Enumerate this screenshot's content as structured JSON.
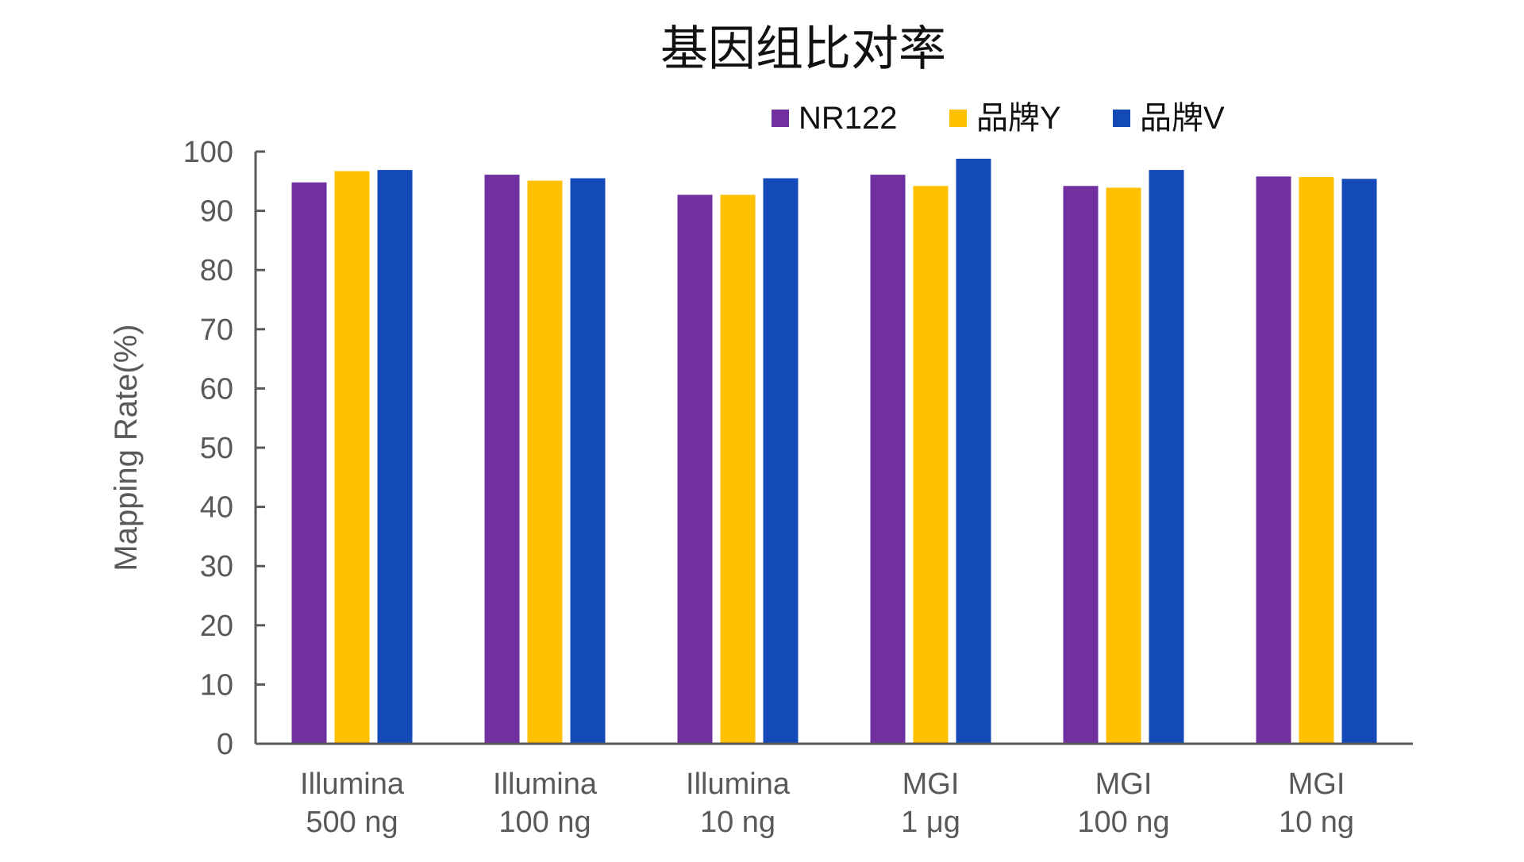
{
  "chart_data": {
    "type": "bar",
    "title": "基因组比对率",
    "xlabel": "",
    "ylabel": "Mapping Rate(%)",
    "ylim": [
      0,
      100
    ],
    "yticks": [
      0,
      10,
      20,
      30,
      40,
      50,
      60,
      70,
      80,
      90,
      100
    ],
    "grid": false,
    "legend_position": "top-right",
    "categories": [
      "Illumina\n500 ng",
      "Illumina\n100 ng",
      "Illumina\n10 ng",
      "MGI\n1 μg",
      "MGI\n100 ng",
      "MGI\n10 ng"
    ],
    "series": [
      {
        "name": "NR122",
        "color": "#7030a0",
        "values": [
          94.8,
          96.1,
          92.7,
          96.1,
          94.2,
          95.8
        ]
      },
      {
        "name": "品牌Y",
        "color": "#ffc000",
        "values": [
          96.7,
          95.1,
          92.7,
          94.2,
          93.9,
          95.7
        ]
      },
      {
        "name": "品牌V",
        "color": "#1449b8",
        "values": [
          96.9,
          95.5,
          95.5,
          98.8,
          96.9,
          95.4
        ]
      }
    ]
  }
}
